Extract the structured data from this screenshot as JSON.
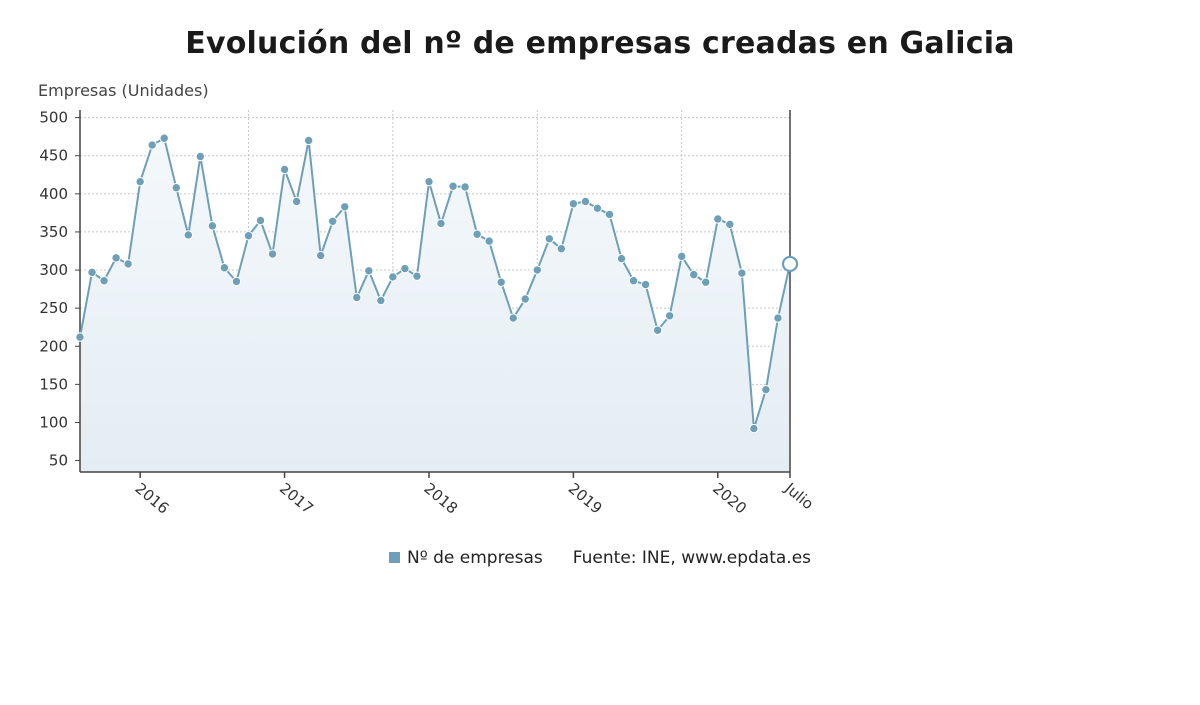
{
  "title": "Evolución del nº de empresas creadas en Galicia",
  "legend": {
    "series_label": "Nº de empresas",
    "source": "Fuente: INE, www.epdata.es"
  },
  "colors": {
    "line": "#6e9fb8",
    "point": "#6e9fb8",
    "area_top": "#f4f8fb",
    "area_bottom": "#e4edf3",
    "grid": "#c8c8c8",
    "axis": "#444444"
  },
  "chart_data": {
    "type": "line",
    "title": "Evolución del nº de empresas creadas en Galicia",
    "ylabel": "Empresas (Unidades)",
    "xlabel": "",
    "ylim": [
      35,
      510
    ],
    "yticks": [
      50,
      100,
      150,
      200,
      250,
      300,
      350,
      400,
      450,
      500
    ],
    "x_start": "2015-08",
    "x_end": "2020-07",
    "xtick_labels": [
      {
        "date": "2016-01",
        "label": "2016"
      },
      {
        "date": "2017-01",
        "label": "2017"
      },
      {
        "date": "2018-01",
        "label": "2018"
      },
      {
        "date": "2019-01",
        "label": "2019"
      },
      {
        "date": "2020-01",
        "label": "2020"
      },
      {
        "date": "2020-07",
        "label": "Julio"
      }
    ],
    "grid": true,
    "legend_position": "bottom",
    "series": [
      {
        "name": "Nº de empresas",
        "x": [
          "2015-08",
          "2015-09",
          "2015-10",
          "2015-11",
          "2015-12",
          "2016-01",
          "2016-02",
          "2016-03",
          "2016-04",
          "2016-05",
          "2016-06",
          "2016-07",
          "2016-08",
          "2016-09",
          "2016-10",
          "2016-11",
          "2016-12",
          "2017-01",
          "2017-02",
          "2017-03",
          "2017-04",
          "2017-05",
          "2017-06",
          "2017-07",
          "2017-08",
          "2017-09",
          "2017-10",
          "2017-11",
          "2017-12",
          "2018-01",
          "2018-02",
          "2018-03",
          "2018-04",
          "2018-05",
          "2018-06",
          "2018-07",
          "2018-08",
          "2018-09",
          "2018-10",
          "2018-11",
          "2018-12",
          "2019-01",
          "2019-02",
          "2019-03",
          "2019-04",
          "2019-05",
          "2019-06",
          "2019-07",
          "2019-08",
          "2019-09",
          "2019-10",
          "2019-11",
          "2019-12",
          "2020-01",
          "2020-02",
          "2020-03",
          "2020-04",
          "2020-05",
          "2020-06",
          "2020-07"
        ],
        "values": [
          212,
          297,
          286,
          316,
          308,
          416,
          464,
          473,
          408,
          346,
          449,
          358,
          303,
          285,
          345,
          365,
          321,
          432,
          390,
          470,
          319,
          364,
          383,
          264,
          299,
          260,
          291,
          302,
          292,
          416,
          361,
          410,
          409,
          347,
          338,
          284,
          237,
          262,
          300,
          341,
          328,
          387,
          390,
          381,
          373,
          315,
          286,
          281,
          221,
          240,
          318,
          294,
          284,
          367,
          360,
          296,
          92,
          143,
          237,
          308
        ]
      }
    ]
  }
}
